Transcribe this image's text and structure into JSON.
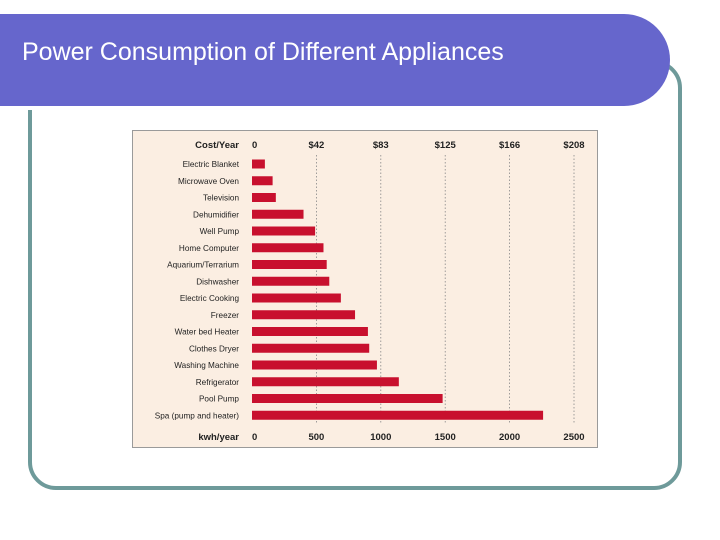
{
  "slide": {
    "title": "Power Consumption of Different Appliances"
  },
  "colors": {
    "title_bar": "#6666cc",
    "frame": "#6e9a9a",
    "chart_background": "#fbeee2",
    "bar": "#c8102e"
  },
  "chart_data": {
    "type": "bar",
    "orientation": "horizontal",
    "title": "",
    "top_axis_label": "Cost/Year",
    "top_axis_ticks": [
      "0",
      "$42",
      "$83",
      "$125",
      "$166",
      "$208"
    ],
    "xlabel": "kwh/year",
    "x_ticks": [
      "0",
      "500",
      "1000",
      "1500",
      "2000",
      "2500"
    ],
    "xlim": [
      0,
      2500
    ],
    "grid": "vertical dotted lines at each tick",
    "categories": [
      "Electric Blanket",
      "Microwave Oven",
      "Television",
      "Dehumidifier",
      "Well Pump",
      "Home Computer",
      "Aquarium/Terrarium",
      "Dishwasher",
      "Electric Cooking",
      "Freezer",
      "Water bed Heater",
      "Clothes Dryer",
      "Washing Machine",
      "Refrigerator",
      "Pool Pump",
      "Spa (pump and heater)"
    ],
    "values": [
      100,
      160,
      185,
      400,
      490,
      555,
      580,
      600,
      690,
      800,
      900,
      910,
      970,
      1140,
      1480,
      2260
    ]
  }
}
